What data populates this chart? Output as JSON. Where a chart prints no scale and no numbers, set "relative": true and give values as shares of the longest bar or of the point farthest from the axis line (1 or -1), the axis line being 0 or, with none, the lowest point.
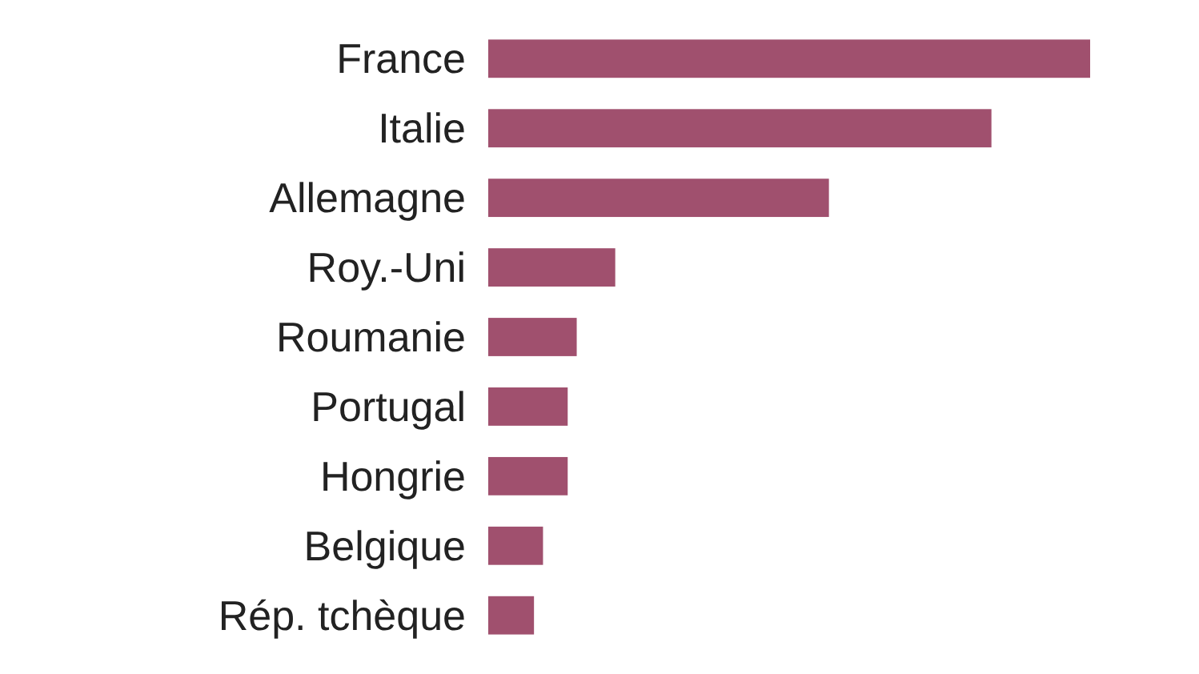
{
  "chart_data": {
    "type": "bar",
    "orientation": "horizontal",
    "relative": true,
    "categories": [
      "France",
      "Italie",
      "Allemagne",
      "Roy.-Uni",
      "Roumanie",
      "Portugal",
      "Hongrie",
      "Belgique",
      "Rép. tchèque"
    ],
    "values": [
      1,
      0.836,
      0.566,
      0.211,
      0.147,
      0.132,
      0.132,
      0.091,
      0.076
    ],
    "color": "#a0506e"
  }
}
